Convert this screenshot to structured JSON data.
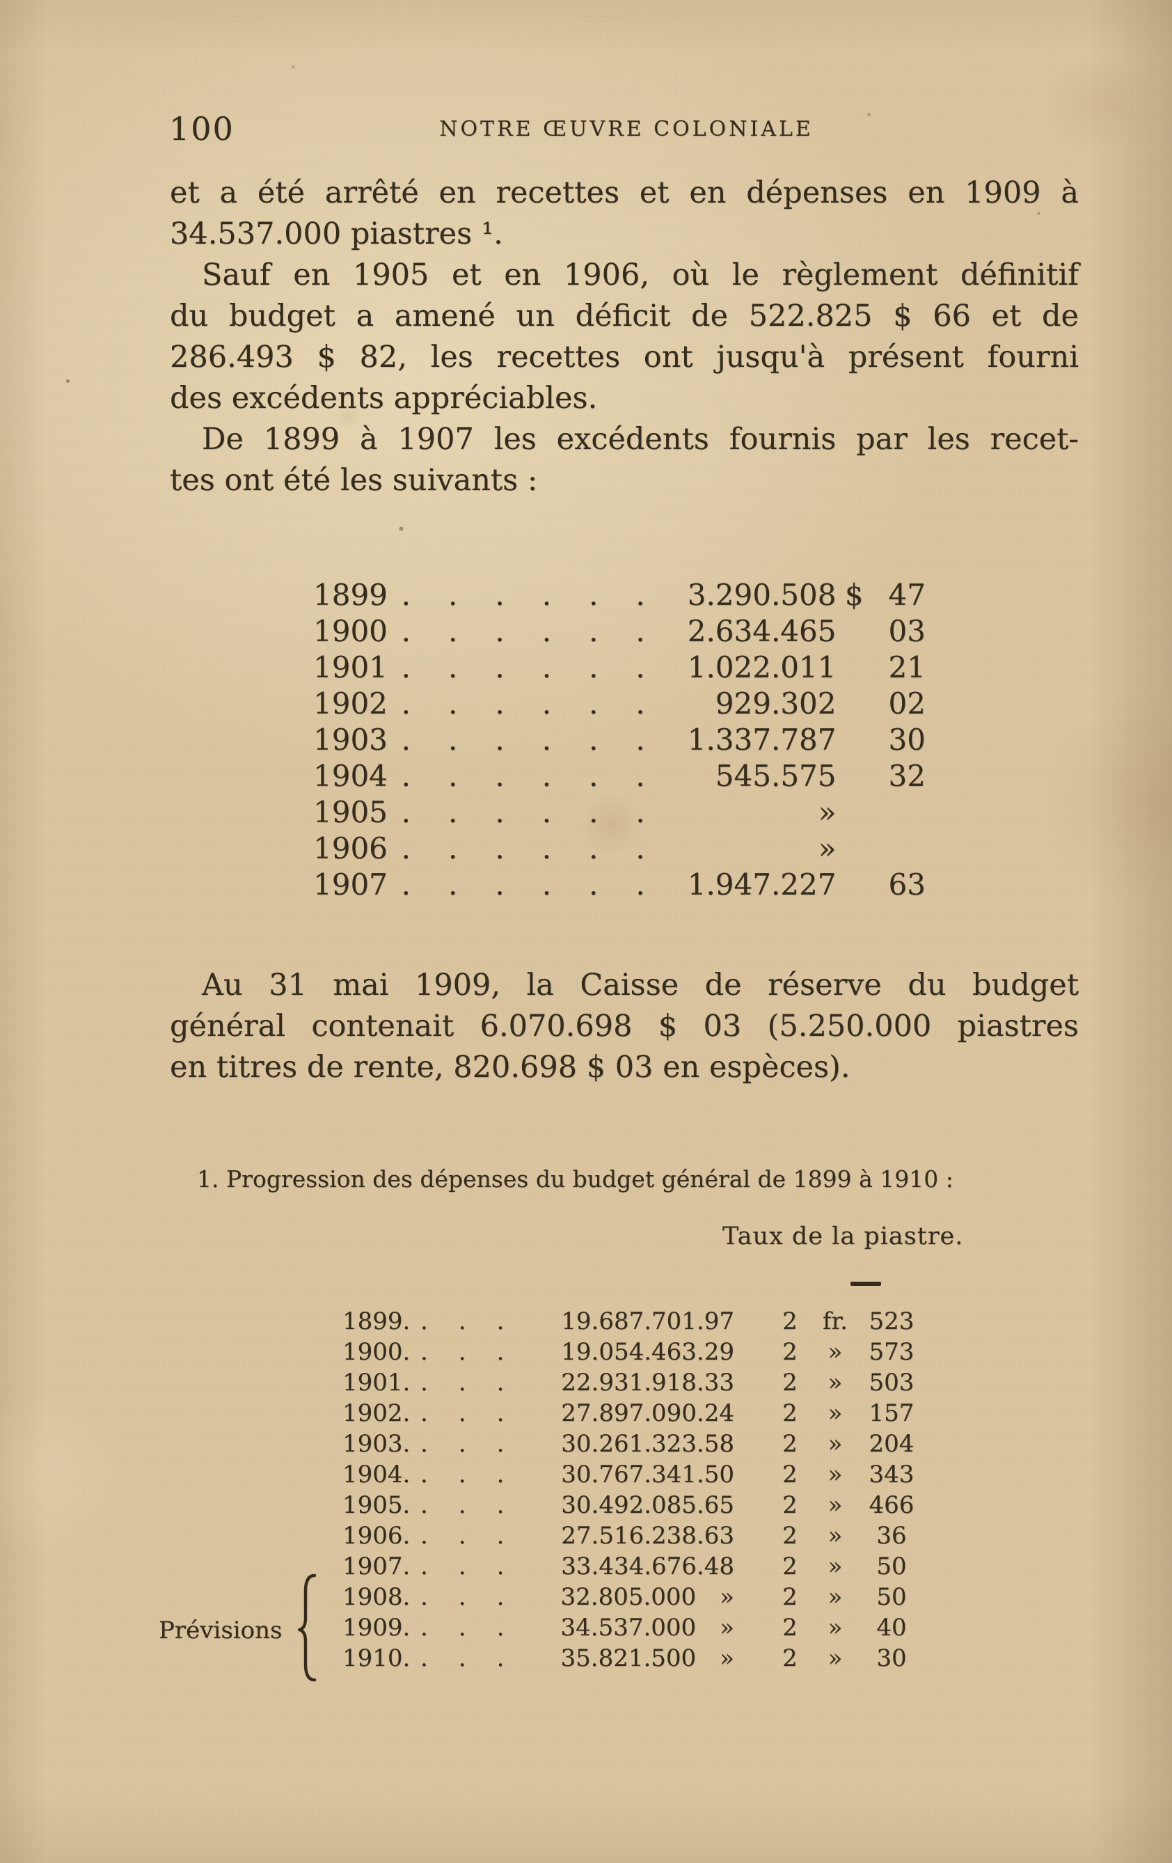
{
  "header": {
    "page_number": "100",
    "running_title": "NOTRE ŒUVRE COLONIALE"
  },
  "paragraphs": {
    "p1": {
      "indent": false,
      "lines": [
        "et a été arrêté en recettes et en dépenses en 1909 à",
        "34.537.000 piastres ¹."
      ]
    },
    "p2": {
      "indent": true,
      "lines": [
        "Sauf en 1905 et en 1906, où le règlement définitif",
        "du budget a amené un déficit de 522.825 $ 66 et de",
        "286.493 $ 82, les recettes ont jusqu'à présent fourni",
        "des excédents appréciables."
      ]
    },
    "p3": {
      "indent": true,
      "lines": [
        "De 1899 à 1907 les excédents fournis par les recet-",
        "tes ont été les suivants :"
      ]
    },
    "p4": {
      "indent": true,
      "lines": [
        "Au 31 mai 1909, la Caisse de réserve du budget",
        "général contenait 6.070.698 $ 03 (5.250.000 piastres",
        "en titres de rente, 820.698 $ 03 en espèces)."
      ]
    }
  },
  "excedents_table": {
    "leader": "......",
    "currency_sign": "$",
    "rows": [
      {
        "year": "1899",
        "amount": "3.290.508",
        "sign": "$",
        "cents": "47"
      },
      {
        "year": "1900",
        "amount": "2.634.465",
        "sign": "",
        "cents": "03"
      },
      {
        "year": "1901",
        "amount": "1.022.011",
        "sign": "",
        "cents": "21"
      },
      {
        "year": "1902",
        "amount": "929.302",
        "sign": "",
        "cents": "02"
      },
      {
        "year": "1903",
        "amount": "1.337.787",
        "sign": "",
        "cents": "30"
      },
      {
        "year": "1904",
        "amount": "545.575",
        "sign": "",
        "cents": "32"
      },
      {
        "year": "1905",
        "amount": "»",
        "sign": "",
        "cents": ""
      },
      {
        "year": "1906",
        "amount": "»",
        "sign": "",
        "cents": ""
      },
      {
        "year": "1907",
        "amount": "1.947.227",
        "sign": "",
        "cents": "63"
      }
    ]
  },
  "footnote": {
    "heading": "1. Progression des dépenses du budget général de 1899 à 1910 :",
    "rate_header": "Taux de la piastre.",
    "previsions_label": "Prévisions"
  },
  "progression_table": {
    "leader": "...",
    "rows": [
      {
        "year": "1899.",
        "amount": "19.687.701.97",
        "suffix": "",
        "rate_int": "2",
        "rate_unit": "fr.",
        "rate_dec": "523"
      },
      {
        "year": "1900.",
        "amount": "19.054.463.29",
        "suffix": "",
        "rate_int": "2",
        "rate_unit": "»",
        "rate_dec": "573"
      },
      {
        "year": "1901.",
        "amount": "22.931.918.33",
        "suffix": "",
        "rate_int": "2",
        "rate_unit": "»",
        "rate_dec": "503"
      },
      {
        "year": "1902.",
        "amount": "27.897.090.24",
        "suffix": "",
        "rate_int": "2",
        "rate_unit": "»",
        "rate_dec": "157"
      },
      {
        "year": "1903.",
        "amount": "30.261.323.58",
        "suffix": "",
        "rate_int": "2",
        "rate_unit": "»",
        "rate_dec": "204"
      },
      {
        "year": "1904.",
        "amount": "30.767.341.50",
        "suffix": "",
        "rate_int": "2",
        "rate_unit": "»",
        "rate_dec": "343"
      },
      {
        "year": "1905.",
        "amount": "30.492.085.65",
        "suffix": "",
        "rate_int": "2",
        "rate_unit": "»",
        "rate_dec": "466"
      },
      {
        "year": "1906.",
        "amount": "27.516.238.63",
        "suffix": "",
        "rate_int": "2",
        "rate_unit": "»",
        "rate_dec": "36"
      },
      {
        "year": "1907.",
        "amount": "33.434.676.48",
        "suffix": "",
        "rate_int": "2",
        "rate_unit": "»",
        "rate_dec": "50"
      },
      {
        "year": "1908.",
        "amount": "32.805.000",
        "suffix": "»",
        "rate_int": "2",
        "rate_unit": "»",
        "rate_dec": "50"
      },
      {
        "year": "1909.",
        "amount": "34.537.000",
        "suffix": "»",
        "rate_int": "2",
        "rate_unit": "»",
        "rate_dec": "40"
      },
      {
        "year": "1910.",
        "amount": "35.821.500",
        "suffix": "»",
        "rate_int": "2",
        "rate_unit": "»",
        "rate_dec": "30"
      }
    ]
  }
}
